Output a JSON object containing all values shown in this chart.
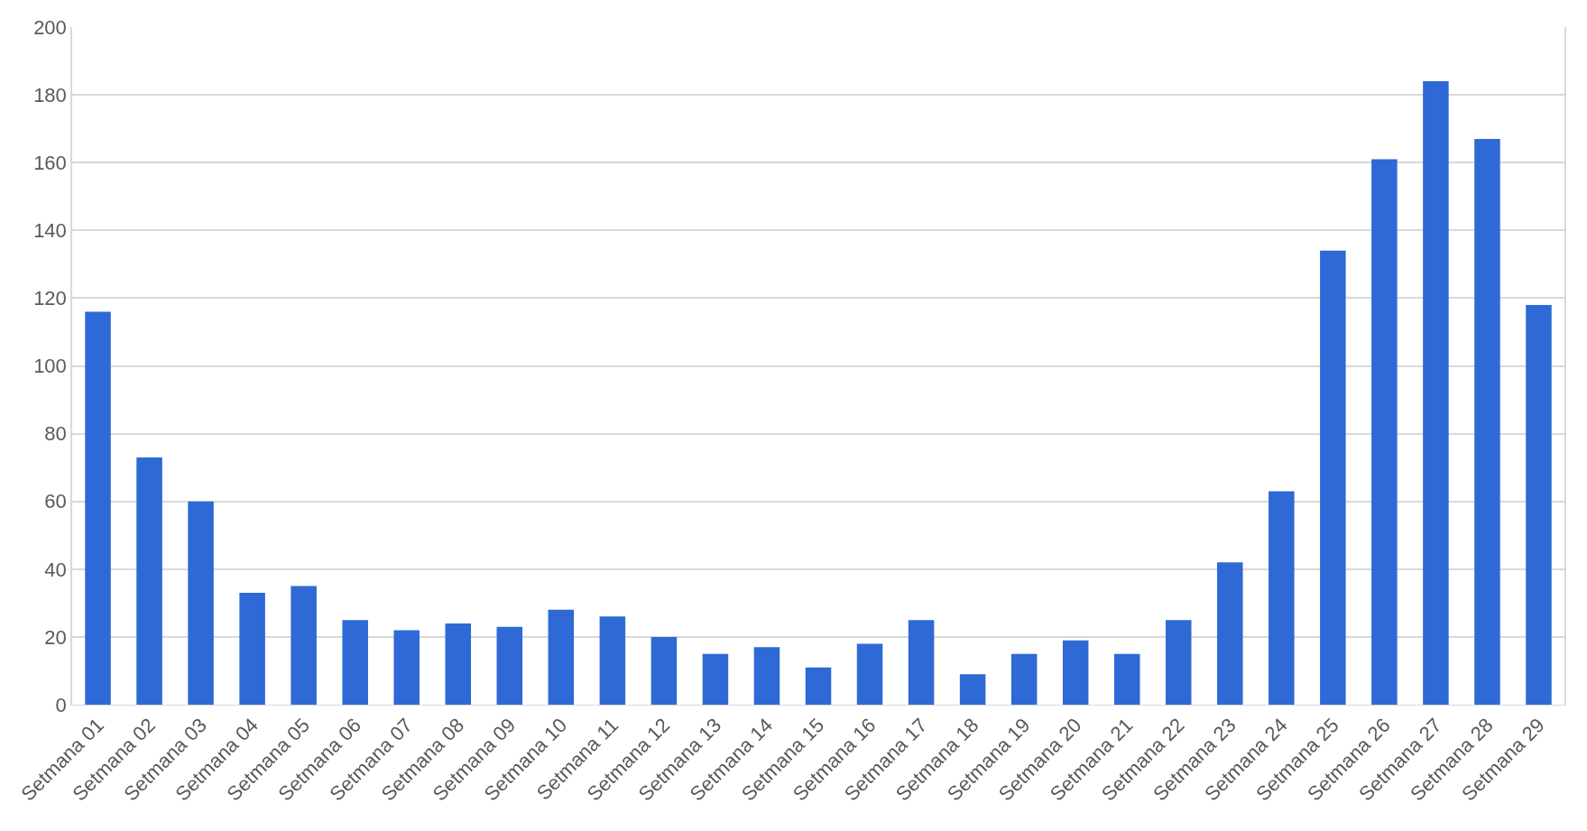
{
  "chart_data": {
    "type": "bar",
    "categories": [
      "Setmana 01",
      "Setmana 02",
      "Setmana 03",
      "Setmana 04",
      "Setmana 05",
      "Setmana 06",
      "Setmana 07",
      "Setmana 08",
      "Setmana 09",
      "Setmana 10",
      "Setmana 11",
      "Setmana 12",
      "Setmana 13",
      "Setmana 14",
      "Setmana 15",
      "Setmana 16",
      "Setmana 17",
      "Setmana 18",
      "Setmana 19",
      "Setmana 20",
      "Setmana 21",
      "Setmana 22",
      "Setmana 23",
      "Setmana 24",
      "Setmana 25",
      "Setmana 26",
      "Setmana 27",
      "Setmana 28",
      "Setmana 29"
    ],
    "values": [
      116,
      73,
      60,
      33,
      35,
      25,
      22,
      24,
      23,
      28,
      26,
      20,
      15,
      17,
      11,
      18,
      25,
      9,
      15,
      19,
      15,
      25,
      42,
      63,
      134,
      161,
      184,
      167,
      118
    ],
    "color": "#2e69d6",
    "ylim": [
      0,
      200
    ],
    "yticks": [
      0,
      20,
      40,
      60,
      80,
      100,
      120,
      140,
      160,
      180,
      200
    ],
    "grid": "y"
  }
}
